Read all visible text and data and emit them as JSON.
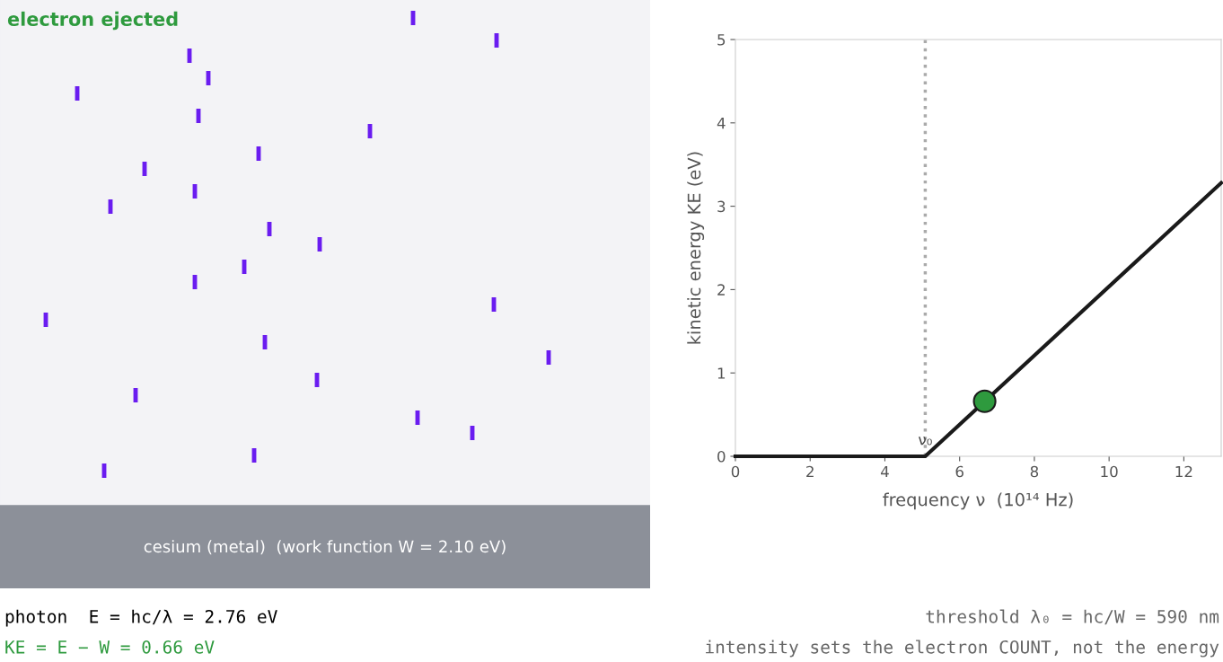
{
  "chart_data": [
    {
      "type": "other",
      "title": "electron ejected",
      "annotations": [
        "cesium (metal)  (work function W = 2.10 eV)",
        "photon  E = hc/λ = 2.76 eV",
        "KE = E − W = 0.66 eV"
      ]
    },
    {
      "type": "line",
      "xlabel": "frequency ν  (10¹⁴ Hz)",
      "ylabel": "kinetic energy KE (eV)",
      "xlim": [
        0,
        13
      ],
      "ylim": [
        0,
        5
      ],
      "xticks": [
        0,
        2,
        4,
        6,
        8,
        10,
        12
      ],
      "yticks": [
        0,
        1,
        2,
        3,
        4,
        5
      ],
      "grid": false,
      "legend": false,
      "series": [
        {
          "type": "line",
          "color": "#1a1a1a",
          "x": [
            0,
            5.08,
            13
          ],
          "values": [
            0,
            0,
            3.28
          ],
          "marker": "none",
          "line_style": "solid"
        },
        {
          "type": "scatter",
          "color": "#2e9a3e",
          "x": [
            6.67
          ],
          "values": [
            0.66
          ],
          "marker": "circle"
        }
      ],
      "ref_lines": [
        {
          "axis": "x",
          "value": 5.08,
          "label": "ν₀",
          "color": "#aaaaaa",
          "line_style": "dotted"
        }
      ],
      "annotations": [
        "threshold λ₀ = hc/W = 590 nm",
        "intensity sets the electron COUNT, not the energy"
      ]
    }
  ]
}
